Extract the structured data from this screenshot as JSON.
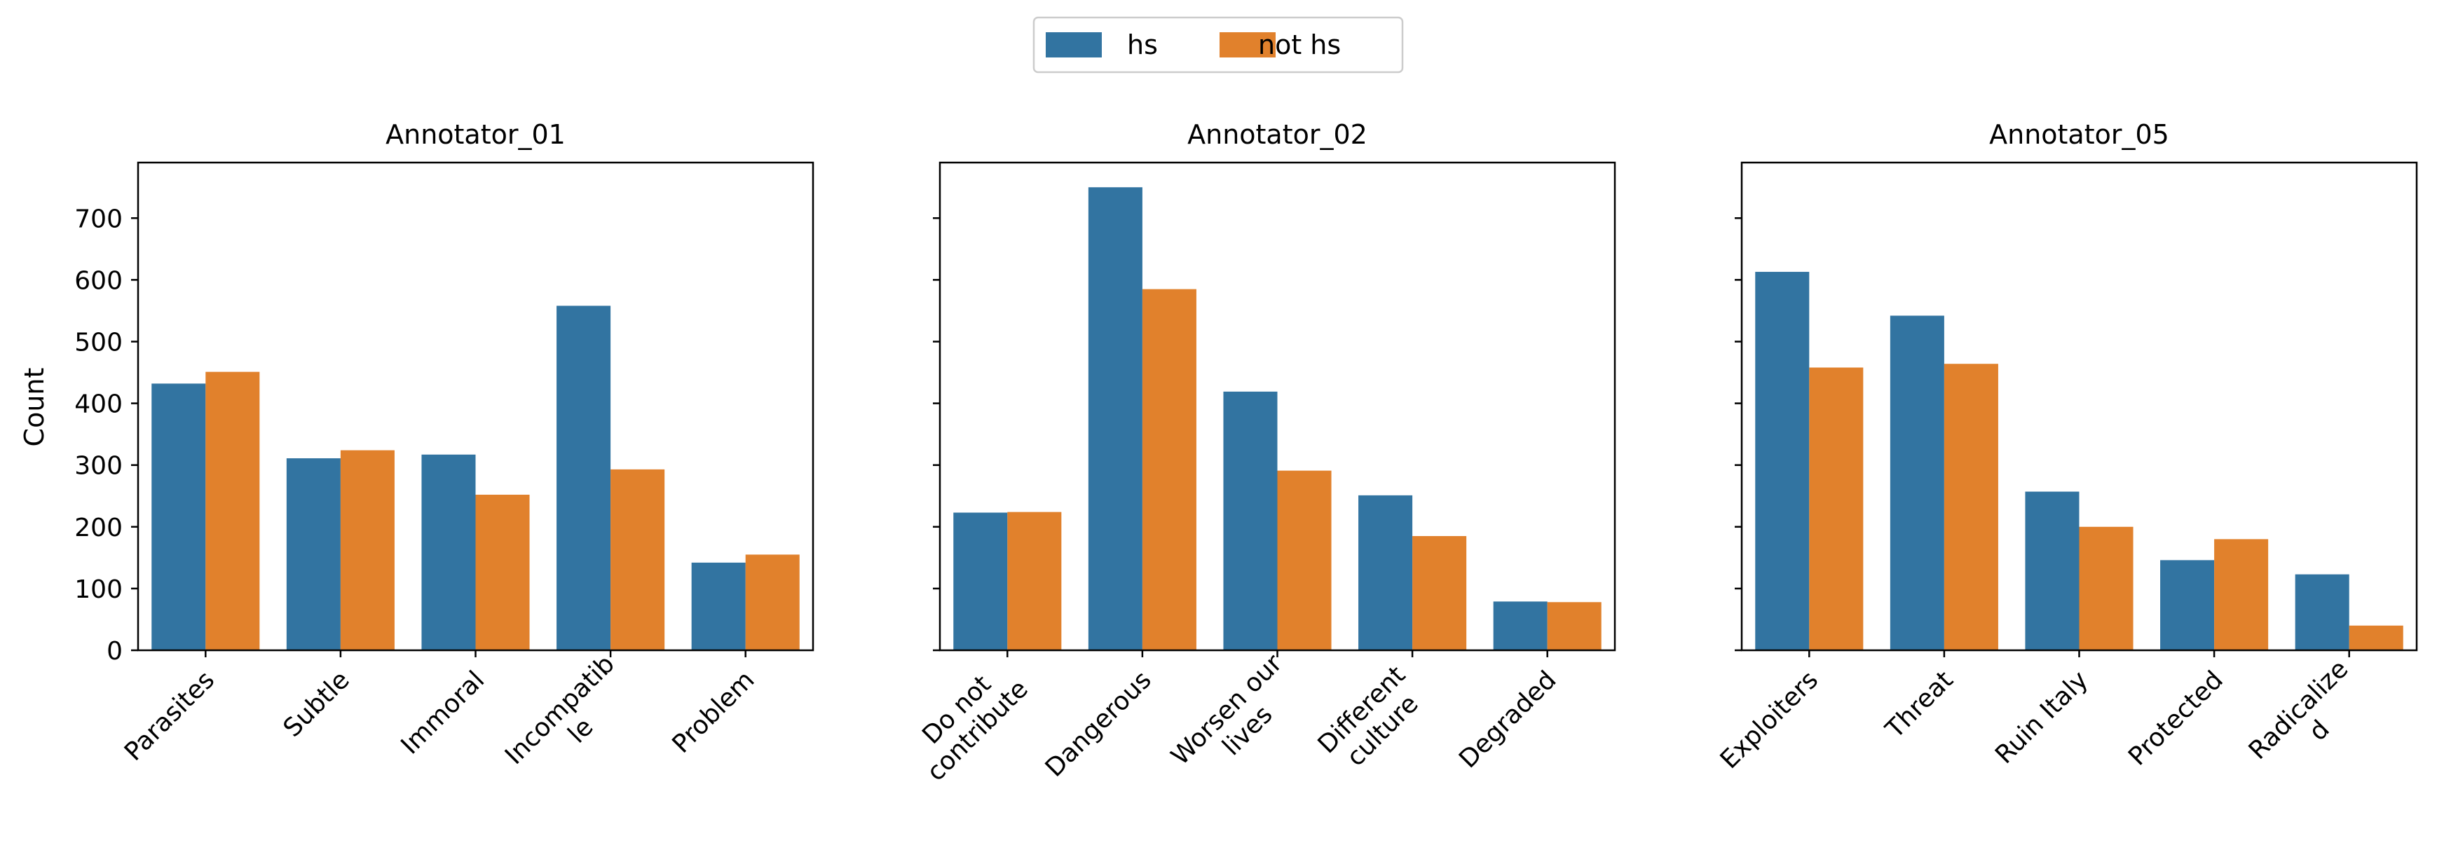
{
  "legend": {
    "placement": "top-center",
    "entries": [
      {
        "name": "hs",
        "color": "#3274a1"
      },
      {
        "name": "not hs",
        "color": "#e1812c"
      }
    ]
  },
  "shared_ylabel": "Count",
  "yticks": [
    0,
    100,
    200,
    300,
    400,
    500,
    600,
    700
  ],
  "chart_data": [
    {
      "type": "bar",
      "title": "Annotator_01",
      "ylabel": "Count",
      "ylim": [
        0,
        790
      ],
      "grid": false,
      "categories": [
        [
          "Parasites"
        ],
        [
          "Subtle"
        ],
        [
          "Immoral"
        ],
        [
          "Incompatib",
          "le"
        ],
        [
          "Problem"
        ]
      ],
      "series": [
        {
          "name": "hs",
          "values": [
            432,
            311,
            317,
            558,
            142
          ]
        },
        {
          "name": "not hs",
          "values": [
            451,
            324,
            252,
            293,
            155
          ]
        }
      ]
    },
    {
      "type": "bar",
      "title": "Annotator_02",
      "ylabel": "",
      "ylim": [
        0,
        790
      ],
      "grid": false,
      "categories": [
        [
          "Do not",
          "contribute"
        ],
        [
          "Dangerous"
        ],
        [
          "Worsen our",
          "lives"
        ],
        [
          "Different",
          "culture"
        ],
        [
          "Degraded"
        ]
      ],
      "series": [
        {
          "name": "hs",
          "values": [
            223,
            750,
            419,
            251,
            79
          ]
        },
        {
          "name": "not hs",
          "values": [
            224,
            585,
            291,
            185,
            78
          ]
        }
      ]
    },
    {
      "type": "bar",
      "title": "Annotator_05",
      "ylabel": "",
      "ylim": [
        0,
        790
      ],
      "grid": false,
      "categories": [
        [
          "Exploiters"
        ],
        [
          "Threat"
        ],
        [
          "Ruin Italy"
        ],
        [
          "Protected"
        ],
        [
          "Radicalize",
          "d"
        ]
      ],
      "series": [
        {
          "name": "hs",
          "values": [
            613,
            542,
            257,
            146,
            123
          ]
        },
        {
          "name": "not hs",
          "values": [
            458,
            464,
            200,
            180,
            40
          ]
        }
      ]
    }
  ]
}
